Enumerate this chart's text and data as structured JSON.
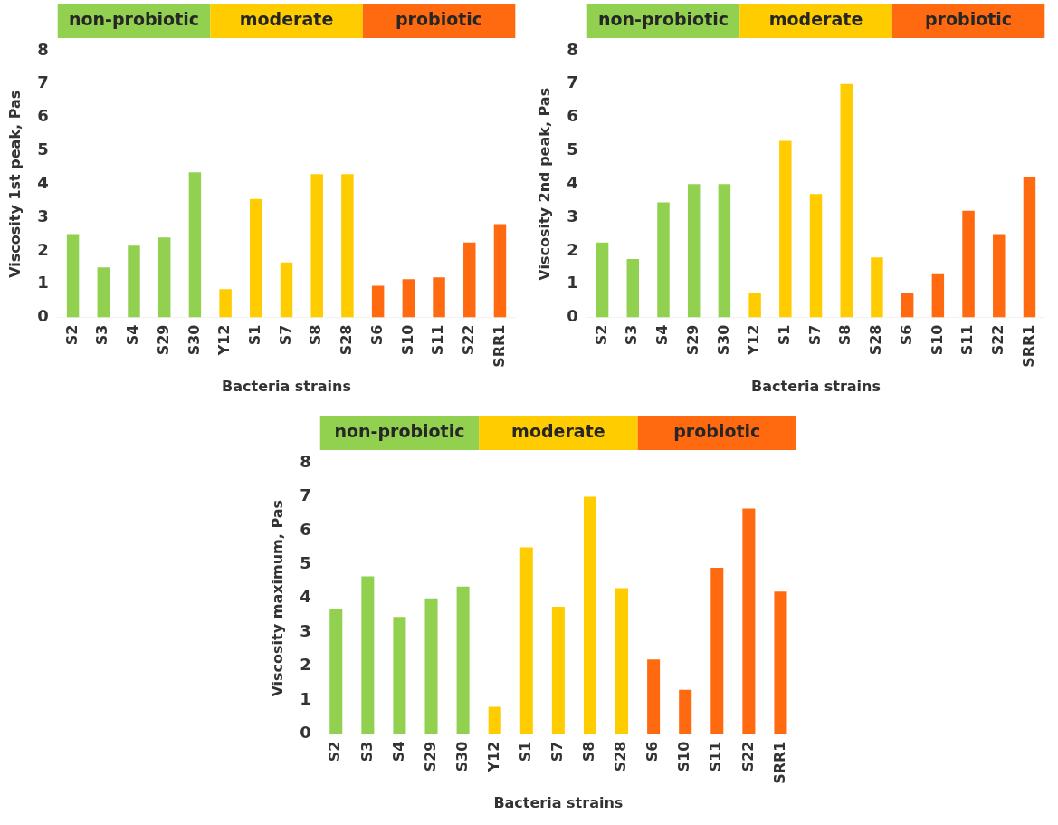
{
  "chart_data": [
    {
      "type": "bar",
      "ylabel": "Viscosity 1st peak, Pas",
      "xlabel": "Bacteria strains",
      "categories": [
        "S2",
        "S3",
        "S4",
        "S29",
        "S30",
        "Y12",
        "S1",
        "S7",
        "S8",
        "S28",
        "S6",
        "S10",
        "S11",
        "S22",
        "SRR1"
      ],
      "values": [
        2.5,
        1.5,
        2.15,
        2.4,
        4.35,
        0.85,
        3.55,
        1.65,
        4.3,
        4.3,
        0.95,
        1.15,
        1.2,
        2.25,
        2.8
      ],
      "colors": [
        "#92d050",
        "#92d050",
        "#92d050",
        "#92d050",
        "#92d050",
        "#ffcc00",
        "#ffcc00",
        "#ffcc00",
        "#ffcc00",
        "#ffcc00",
        "#ff6a10",
        "#ff6a10",
        "#ff6a10",
        "#ff6a10",
        "#ff6a10"
      ],
      "ylim": [
        0,
        8
      ],
      "yticks": [
        0,
        1,
        2,
        3,
        4,
        5,
        6,
        7,
        8
      ],
      "grid": false,
      "legend": false,
      "annotations": [
        "non-probiotic",
        "moderate",
        "probiotic"
      ]
    },
    {
      "type": "bar",
      "ylabel": "Viscosity 2nd peak, Pas",
      "xlabel": "Bacteria strains",
      "categories": [
        "S2",
        "S3",
        "S4",
        "S29",
        "S30",
        "Y12",
        "S1",
        "S7",
        "S8",
        "S28",
        "S6",
        "S10",
        "S11",
        "S22",
        "SRR1"
      ],
      "values": [
        2.25,
        1.75,
        3.45,
        4.0,
        4.0,
        0.75,
        5.3,
        3.7,
        7.0,
        1.8,
        0.75,
        1.3,
        3.2,
        2.5,
        4.2
      ],
      "colors": [
        "#92d050",
        "#92d050",
        "#92d050",
        "#92d050",
        "#92d050",
        "#ffcc00",
        "#ffcc00",
        "#ffcc00",
        "#ffcc00",
        "#ffcc00",
        "#ff6a10",
        "#ff6a10",
        "#ff6a10",
        "#ff6a10",
        "#ff6a10"
      ],
      "ylim": [
        0,
        8
      ],
      "yticks": [
        0,
        1,
        2,
        3,
        4,
        5,
        6,
        7,
        8
      ],
      "grid": false,
      "legend": false,
      "annotations": [
        "non-probiotic",
        "moderate",
        "probiotic"
      ]
    },
    {
      "type": "bar",
      "ylabel": "Viscosity maximum, Pas",
      "xlabel": "Bacteria strains",
      "categories": [
        "S2",
        "S3",
        "S4",
        "S29",
        "S30",
        "Y12",
        "S1",
        "S7",
        "S8",
        "S28",
        "S6",
        "S10",
        "S11",
        "S22",
        "SRR1"
      ],
      "values": [
        3.7,
        4.65,
        3.45,
        4.0,
        4.35,
        0.8,
        5.5,
        3.75,
        7.0,
        4.3,
        2.2,
        1.3,
        4.9,
        6.65,
        4.2
      ],
      "colors": [
        "#92d050",
        "#92d050",
        "#92d050",
        "#92d050",
        "#92d050",
        "#ffcc00",
        "#ffcc00",
        "#ffcc00",
        "#ffcc00",
        "#ffcc00",
        "#ff6a10",
        "#ff6a10",
        "#ff6a10",
        "#ff6a10",
        "#ff6a10"
      ],
      "ylim": [
        0,
        8
      ],
      "yticks": [
        0,
        1,
        2,
        3,
        4,
        5,
        6,
        7,
        8
      ],
      "grid": false,
      "legend": false,
      "annotations": [
        "non-probiotic",
        "moderate",
        "probiotic"
      ]
    }
  ]
}
